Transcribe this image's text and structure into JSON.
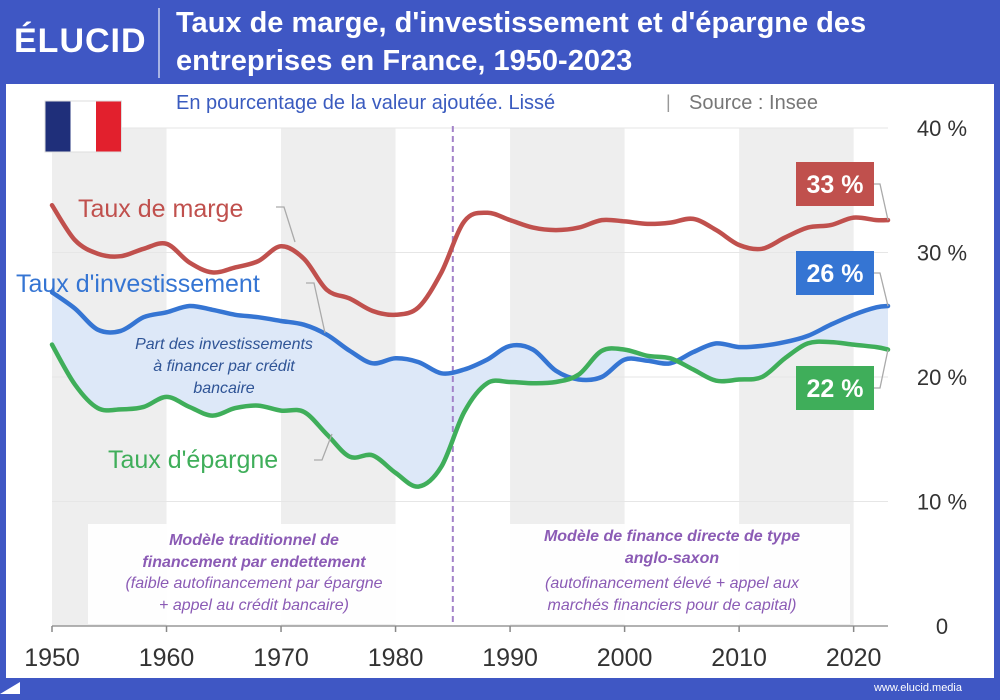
{
  "header": {
    "logo": "ÉLUCID",
    "title": "Taux de marge, d'investissement et d'épargne des entreprises en France, 1950-2023"
  },
  "footer": {
    "url": "www.elucid.media"
  },
  "chart_data": {
    "type": "line",
    "title": "Taux de marge, d'investissement et d'épargne des entreprises en France, 1950-2023",
    "subtitle": "En pourcentage de la valeur ajoutée. Lissé",
    "source": "Source : Insee",
    "x_ticks": [
      1950,
      1960,
      1970,
      1980,
      1990,
      2000,
      2010,
      2020
    ],
    "x_tick_labels": [
      "1950",
      "1960",
      "1970",
      "1980",
      "1990",
      "2000",
      "2010",
      "2020"
    ],
    "xlim": [
      1950,
      2023
    ],
    "y_ticks": [
      0,
      10,
      20,
      30,
      40
    ],
    "y_tick_labels": [
      "0",
      "10 %",
      "20 %",
      "30 %",
      "40 %"
    ],
    "ylim": [
      0,
      40
    ],
    "marker_year": 1985,
    "series": [
      {
        "name": "Taux de marge",
        "label": "Taux de marge",
        "color": "#c0504d",
        "end_label": "33 %",
        "x": [
          1950,
          1952,
          1954,
          1956,
          1958,
          1960,
          1962,
          1964,
          1966,
          1968,
          1970,
          1972,
          1974,
          1976,
          1978,
          1980,
          1982,
          1984,
          1986,
          1988,
          1990,
          1992,
          1994,
          1996,
          1998,
          2000,
          2002,
          2004,
          2006,
          2008,
          2010,
          2012,
          2014,
          2016,
          2018,
          2020,
          2022,
          2023
        ],
        "values": [
          33.8,
          31.0,
          29.9,
          29.7,
          30.3,
          30.7,
          29.2,
          28.4,
          28.8,
          29.3,
          30.5,
          29.5,
          27.0,
          26.3,
          25.3,
          25.0,
          25.6,
          28.4,
          32.5,
          33.2,
          32.6,
          32.0,
          31.8,
          32.0,
          32.6,
          32.5,
          32.3,
          32.4,
          32.7,
          31.8,
          30.6,
          30.3,
          31.2,
          32.0,
          32.2,
          32.8,
          32.6,
          32.6
        ]
      },
      {
        "name": "Taux d'investissement",
        "label": "Taux d'investissement",
        "color": "#3575d3",
        "end_label": "26 %",
        "x": [
          1950,
          1952,
          1954,
          1956,
          1958,
          1960,
          1962,
          1964,
          1966,
          1968,
          1970,
          1972,
          1974,
          1976,
          1978,
          1980,
          1982,
          1984,
          1986,
          1988,
          1990,
          1992,
          1994,
          1996,
          1998,
          2000,
          2002,
          2004,
          2006,
          2008,
          2010,
          2012,
          2014,
          2016,
          2018,
          2020,
          2022,
          2023
        ],
        "values": [
          26.8,
          25.5,
          23.8,
          23.7,
          24.8,
          25.2,
          25.7,
          25.4,
          25.0,
          24.8,
          24.5,
          24.2,
          23.4,
          22.1,
          21.1,
          21.5,
          21.2,
          20.3,
          20.6,
          21.4,
          22.5,
          22.2,
          20.5,
          19.8,
          20.0,
          21.4,
          21.3,
          21.1,
          22.0,
          22.7,
          22.4,
          22.5,
          22.8,
          23.3,
          24.2,
          25.0,
          25.6,
          25.7
        ]
      },
      {
        "name": "Taux d'épargne",
        "label": "Taux d'épargne",
        "color": "#3fae5a",
        "end_label": "22 %",
        "x": [
          1950,
          1952,
          1954,
          1956,
          1958,
          1960,
          1962,
          1964,
          1966,
          1968,
          1970,
          1972,
          1974,
          1976,
          1978,
          1980,
          1982,
          1984,
          1986,
          1988,
          1990,
          1992,
          1994,
          1996,
          1998,
          2000,
          2002,
          2004,
          2006,
          2008,
          2010,
          2012,
          2014,
          2016,
          2018,
          2020,
          2022,
          2023
        ],
        "values": [
          22.6,
          19.4,
          17.5,
          17.4,
          17.6,
          18.4,
          17.6,
          16.9,
          17.5,
          17.7,
          17.3,
          17.2,
          15.4,
          13.6,
          13.7,
          12.3,
          11.2,
          12.8,
          17.2,
          19.5,
          19.6,
          19.5,
          19.6,
          20.2,
          22.1,
          22.2,
          21.7,
          21.5,
          20.6,
          19.7,
          19.8,
          20.0,
          21.5,
          22.7,
          22.8,
          22.6,
          22.4,
          22.2
        ]
      }
    ],
    "annotations": {
      "gap": "Part des investissements à financer par crédit bancaire",
      "gap_lines": [
        "Part des investissements",
        "à financer par crédit",
        "bancaire"
      ],
      "left_title_lines": [
        "Modèle traditionnel de",
        "financement par endettement"
      ],
      "left_text_lines": [
        "(faible autofinancement par épargne",
        "+ appel au crédit bancaire)"
      ],
      "right_title_lines": [
        "Modèle de finance directe de type",
        "anglo-saxon"
      ],
      "right_text_lines": [
        "(autofinancement élevé + appel aux",
        "marchés financiers pour     de capital)"
      ]
    },
    "colors": {
      "background_band": "#eeeeee",
      "gap_fill": "#dde8f8",
      "marker": "#a383c9",
      "annotation_text": "#8b5bb5",
      "axis_text": "#333333",
      "grid": "#e6e6e6"
    }
  }
}
